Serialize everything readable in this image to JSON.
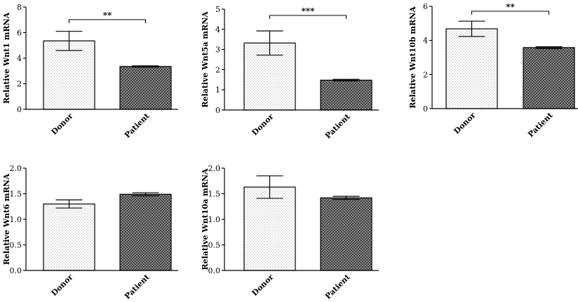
{
  "chart_data": [
    {
      "type": "bar",
      "categories": [
        "Donor",
        "Patient"
      ],
      "values": [
        5.35,
        3.35
      ],
      "errors": [
        0.75,
        0.05
      ],
      "ylabel": "Relative Wnt1 mRNA",
      "ylim": [
        0,
        8
      ],
      "yticks": [
        0,
        2,
        4,
        6,
        8
      ],
      "ytick_labels": [
        "0",
        "2",
        "4",
        "6",
        "8"
      ],
      "significance": "**"
    },
    {
      "type": "bar",
      "categories": [
        "Donor",
        "Patient"
      ],
      "values": [
        3.32,
        1.48
      ],
      "errors": [
        0.6,
        0.04
      ],
      "ylabel": "Relative Wnt5a mRNA",
      "ylim": [
        0,
        5
      ],
      "yticks": [
        0,
        1,
        2,
        3,
        4,
        5
      ],
      "ytick_labels": [
        "0",
        "1",
        "2",
        "3",
        "4",
        "5"
      ],
      "significance": "***"
    },
    {
      "type": "bar",
      "categories": [
        "Donor",
        "Patient"
      ],
      "values": [
        4.68,
        3.58
      ],
      "errors": [
        0.45,
        0.05
      ],
      "ylabel": "Relative Wnt10b mRNA",
      "ylim": [
        0,
        6
      ],
      "yticks": [
        0,
        2,
        4,
        6
      ],
      "ytick_labels": [
        "0",
        "2",
        "4",
        "6"
      ],
      "significance": "**"
    },
    {
      "type": "bar",
      "categories": [
        "Donor",
        "Patient"
      ],
      "values": [
        1.3,
        1.49
      ],
      "errors": [
        0.08,
        0.03
      ],
      "ylabel": "Relative Wnt6 mRNA",
      "ylim": [
        0,
        2.0
      ],
      "yticks": [
        0,
        0.5,
        1.0,
        1.5,
        2.0
      ],
      "ytick_labels": [
        "0.0",
        "0.5",
        "1.0",
        "1.5",
        "2.0"
      ],
      "significance": ""
    },
    {
      "type": "bar",
      "categories": [
        "Donor",
        "Patient"
      ],
      "values": [
        1.63,
        1.42
      ],
      "errors": [
        0.22,
        0.03
      ],
      "ylabel": "Relative Wnt10a mRNA",
      "ylim": [
        0,
        2.0
      ],
      "yticks": [
        0,
        0.5,
        1.0,
        1.5,
        2.0
      ],
      "ytick_labels": [
        "0.0",
        "0.5",
        "1.0",
        "1.5",
        "2.0"
      ],
      "significance": ""
    }
  ]
}
